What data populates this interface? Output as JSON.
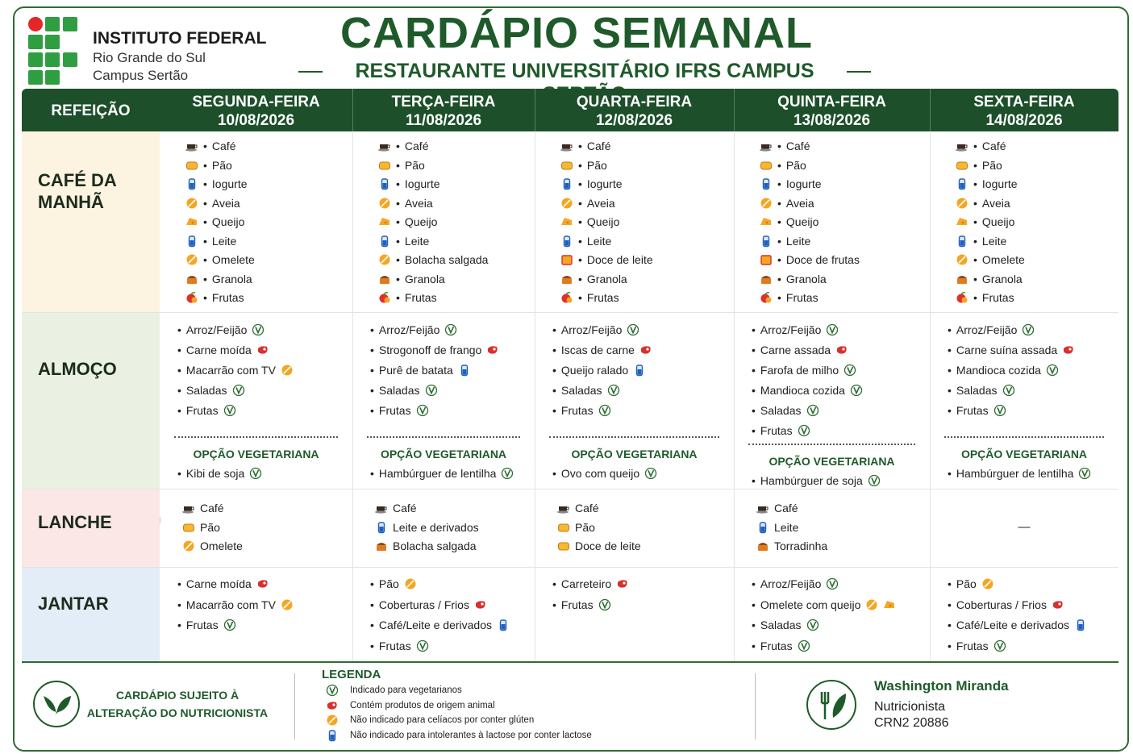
{
  "header": {
    "institute": [
      "INSTITUTO FEDERAL",
      "Rio Grande do Sul",
      "Campus Sertão"
    ],
    "title": "CARDÁPIO SEMANAL",
    "subtitle": "RESTAURANTE UNIVERSITÁRIO IFRS CAMPUS SERTÃO"
  },
  "table": {
    "meal_header": "REFEIÇÃO",
    "days": [
      {
        "name": "SEGUNDA-FEIRA",
        "date": "10/08/2026"
      },
      {
        "name": "TERÇA-FEIRA",
        "date": "11/08/2026"
      },
      {
        "name": "QUARTA-FEIRA",
        "date": "12/08/2026"
      },
      {
        "name": "QUINTA-FEIRA",
        "date": "13/08/2026"
      },
      {
        "name": "SEXTA-FEIRA",
        "date": "14/08/2026"
      }
    ],
    "meals": [
      {
        "name": "CAFÉ DA MANHÃ",
        "style": "breakfast",
        "days": [
          {
            "items": [
              {
                "text": "Café",
                "icon": "cafe"
              },
              {
                "text": "Pão",
                "icon": "pao"
              },
              {
                "text": "Iogurte",
                "icon": "lactose"
              },
              {
                "text": "Aveia",
                "icon": "gluten"
              },
              {
                "text": "Queijo",
                "icon": "queijo"
              },
              {
                "text": "Leite",
                "icon": "lactose"
              },
              {
                "text": "Omelete",
                "icon": "gluten"
              },
              {
                "text": "Granola",
                "icon": "granola"
              },
              {
                "text": "Frutas",
                "icon": "frutas"
              }
            ]
          },
          {
            "items": [
              {
                "text": "Café",
                "icon": "cafe"
              },
              {
                "text": "Pão",
                "icon": "pao"
              },
              {
                "text": "Iogurte",
                "icon": "lactose"
              },
              {
                "text": "Aveia",
                "icon": "gluten"
              },
              {
                "text": "Queijo",
                "icon": "queijo"
              },
              {
                "text": "Leite",
                "icon": "lactose"
              },
              {
                "text": "Bolacha salgada",
                "icon": "gluten"
              },
              {
                "text": "Granola",
                "icon": "granola"
              },
              {
                "text": "Frutas",
                "icon": "frutas"
              }
            ]
          },
          {
            "items": [
              {
                "text": "Café",
                "icon": "cafe"
              },
              {
                "text": "Pão",
                "icon": "pao"
              },
              {
                "text": "Iogurte",
                "icon": "lactose"
              },
              {
                "text": "Aveia",
                "icon": "gluten"
              },
              {
                "text": "Queijo",
                "icon": "queijo"
              },
              {
                "text": "Leite",
                "icon": "lactose"
              },
              {
                "text": "Doce de leite",
                "icon": "doce"
              },
              {
                "text": "Granola",
                "icon": "granola"
              },
              {
                "text": "Frutas",
                "icon": "frutas"
              }
            ]
          },
          {
            "items": [
              {
                "text": "Café",
                "icon": "cafe"
              },
              {
                "text": "Pão",
                "icon": "pao"
              },
              {
                "text": "Iogurte",
                "icon": "lactose"
              },
              {
                "text": "Aveia",
                "icon": "gluten"
              },
              {
                "text": "Queijo",
                "icon": "queijo"
              },
              {
                "text": "Leite",
                "icon": "lactose"
              },
              {
                "text": "Doce de frutas",
                "icon": "doce"
              },
              {
                "text": "Granola",
                "icon": "granola"
              },
              {
                "text": "Frutas",
                "icon": "frutas"
              }
            ]
          },
          {
            "items": [
              {
                "text": "Café",
                "icon": "cafe"
              },
              {
                "text": "Pão",
                "icon": "pao"
              },
              {
                "text": "Iogurte",
                "icon": "lactose"
              },
              {
                "text": "Aveia",
                "icon": "gluten"
              },
              {
                "text": "Queijo",
                "icon": "queijo"
              },
              {
                "text": "Leite",
                "icon": "lactose"
              },
              {
                "text": "Omelete",
                "icon": "gluten"
              },
              {
                "text": "Granola",
                "icon": "granola"
              },
              {
                "text": "Frutas",
                "icon": "frutas"
              }
            ]
          }
        ]
      },
      {
        "name": "ALMOÇO",
        "style": "lunch",
        "days": [
          {
            "items": [
              {
                "text": "Arroz/Feijão",
                "tags": [
                  "vegetariano"
                ]
              },
              {
                "text": "Carne moída",
                "tags": [
                  "animal"
                ]
              },
              {
                "text": "Macarrão com TV",
                "tags": [
                  "gluten"
                ]
              },
              {
                "text": "Saladas",
                "tags": [
                  "vegetariano"
                ]
              },
              {
                "text": "Frutas",
                "tags": [
                  "vegetariano"
                ]
              }
            ],
            "vegetarian_label": "OPÇÃO VEGETARIANA",
            "vegetarian": {
              "text": "Kibi de soja",
              "tags": [
                "vegetariano"
              ]
            }
          },
          {
            "items": [
              {
                "text": "Arroz/Feijão",
                "tags": [
                  "vegetariano"
                ]
              },
              {
                "text": "Strogonoff de frango",
                "tags": [
                  "animal"
                ]
              },
              {
                "text": "Purê de batata",
                "tags": [
                  "lactose"
                ]
              },
              {
                "text": "Saladas",
                "tags": [
                  "vegetariano"
                ]
              },
              {
                "text": "Frutas",
                "tags": [
                  "vegetariano"
                ]
              }
            ],
            "vegetarian_label": "OPÇÃO VEGETARIANA",
            "vegetarian": {
              "text": "Hambúrguer de lentilha",
              "tags": [
                "vegetariano"
              ]
            }
          },
          {
            "items": [
              {
                "text": "Arroz/Feijão",
                "tags": [
                  "vegetariano"
                ]
              },
              {
                "text": "Iscas de carne",
                "tags": [
                  "animal"
                ]
              },
              {
                "text": "Queijo ralado",
                "tags": [
                  "lactose"
                ]
              },
              {
                "text": "Saladas",
                "tags": [
                  "vegetariano"
                ]
              },
              {
                "text": "Frutas",
                "tags": [
                  "vegetariano"
                ]
              }
            ],
            "vegetarian_label": "OPÇÃO VEGETARIANA",
            "vegetarian": {
              "text": "Ovo com queijo",
              "tags": [
                "vegetariano"
              ]
            }
          },
          {
            "items": [
              {
                "text": "Arroz/Feijão",
                "tags": [
                  "vegetariano"
                ]
              },
              {
                "text": "Carne assada",
                "tags": [
                  "animal"
                ]
              },
              {
                "text": "Farofa de milho",
                "tags": [
                  "vegetariano"
                ]
              },
              {
                "text": "Mandioca cozida",
                "tags": [
                  "vegetariano"
                ]
              },
              {
                "text": "Saladas",
                "tags": [
                  "vegetariano"
                ]
              },
              {
                "text": "Frutas",
                "tags": [
                  "vegetariano"
                ]
              }
            ],
            "vegetarian_label": "OPÇÃO VEGETARIANA",
            "vegetarian": {
              "text": "Hambúrguer de soja",
              "tags": [
                "vegetariano"
              ]
            }
          },
          {
            "items": [
              {
                "text": "Arroz/Feijão",
                "tags": [
                  "vegetariano"
                ]
              },
              {
                "text": "Carne suína assada",
                "tags": [
                  "animal"
                ]
              },
              {
                "text": "Mandioca cozida",
                "tags": [
                  "vegetariano"
                ]
              },
              {
                "text": "Saladas",
                "tags": [
                  "vegetariano"
                ]
              },
              {
                "text": "Frutas",
                "tags": [
                  "vegetariano"
                ]
              }
            ],
            "vegetarian_label": "OPÇÃO VEGETARIANA",
            "vegetarian": {
              "text": "Hambúrguer de lentilha",
              "tags": [
                "vegetariano"
              ]
            }
          }
        ]
      },
      {
        "name": "LANCHE",
        "style": "snack",
        "days": [
          {
            "items": [
              {
                "text": "Café",
                "icon": "cafe"
              },
              {
                "text": "Pão",
                "icon": "pao"
              },
              {
                "text": "Omelete",
                "icon": "gluten"
              }
            ]
          },
          {
            "items": [
              {
                "text": "Café",
                "icon": "cafe"
              },
              {
                "text": "Leite e derivados",
                "icon": "lactose"
              },
              {
                "text": "Bolacha salgada",
                "icon": "granola"
              }
            ]
          },
          {
            "items": [
              {
                "text": "Café",
                "icon": "cafe"
              },
              {
                "text": "Pão",
                "icon": "pao"
              },
              {
                "text": "Doce de leite",
                "icon": "pao"
              }
            ]
          },
          {
            "items": [
              {
                "text": "Café",
                "icon": "cafe"
              },
              {
                "text": "Leite",
                "icon": "lactose"
              },
              {
                "text": "Torradinha",
                "icon": "granola"
              }
            ]
          },
          {
            "items": [
              {
                "text": "—"
              }
            ]
          }
        ]
      },
      {
        "name": "JANTAR",
        "style": "dinner",
        "days": [
          {
            "items": [
              {
                "text": "Carne moída",
                "tags": [
                  "animal"
                ]
              },
              {
                "text": "Macarrão com TV",
                "tags": [
                  "gluten"
                ]
              },
              {
                "text": "Frutas",
                "tags": [
                  "vegetariano"
                ]
              }
            ]
          },
          {
            "items": [
              {
                "text": "Pão",
                "tags": [
                  "gluten"
                ]
              },
              {
                "text": "Coberturas / Frios",
                "tags": [
                  "animal"
                ]
              },
              {
                "text": "Café/Leite e derivados",
                "tags": [
                  "lactose"
                ]
              },
              {
                "text": "Frutas",
                "tags": [
                  "vegetariano"
                ]
              }
            ]
          },
          {
            "items": [
              {
                "text": "Carreteiro",
                "tags": [
                  "animal"
                ]
              },
              {
                "text": "Frutas",
                "tags": [
                  "vegetariano"
                ]
              }
            ]
          },
          {
            "items": [
              {
                "text": "Arroz/Feijão",
                "tags": [
                  "vegetariano"
                ]
              },
              {
                "text": "Omelete com queijo",
                "tags": [
                  "gluten",
                  "queijo"
                ]
              },
              {
                "text": "Saladas",
                "tags": [
                  "vegetariano"
                ]
              },
              {
                "text": "Frutas",
                "tags": [
                  "vegetariano"
                ]
              }
            ]
          },
          {
            "items": [
              {
                "text": "Pão",
                "tags": [
                  "gluten"
                ]
              },
              {
                "text": "Coberturas / Frios",
                "tags": [
                  "animal"
                ]
              },
              {
                "text": "Café/Leite e derivados",
                "tags": [
                  "lactose"
                ]
              },
              {
                "text": "Frutas",
                "tags": [
                  "vegetariano"
                ]
              }
            ]
          }
        ]
      }
    ]
  },
  "footer": {
    "notice": [
      "CARDÁPIO SUJEITO À",
      "ALTERAÇÃO DO NUTRICIONISTA"
    ],
    "legend_title": "LEGENDA",
    "legend": [
      {
        "icon": "vegetariano",
        "text": "Indicado para vegetarianos"
      },
      {
        "icon": "animal",
        "text": "Contém produtos de origem animal"
      },
      {
        "icon": "gluten",
        "text": "Não indicado para celíacos por conter glúten"
      },
      {
        "icon": "lactose",
        "text": "Não indicado para intolerantes à lactose por conter lactose"
      }
    ],
    "nutritionist": {
      "name": "Washington Miranda",
      "role": "Nutricionista",
      "registry": "CRN2 20886"
    }
  }
}
